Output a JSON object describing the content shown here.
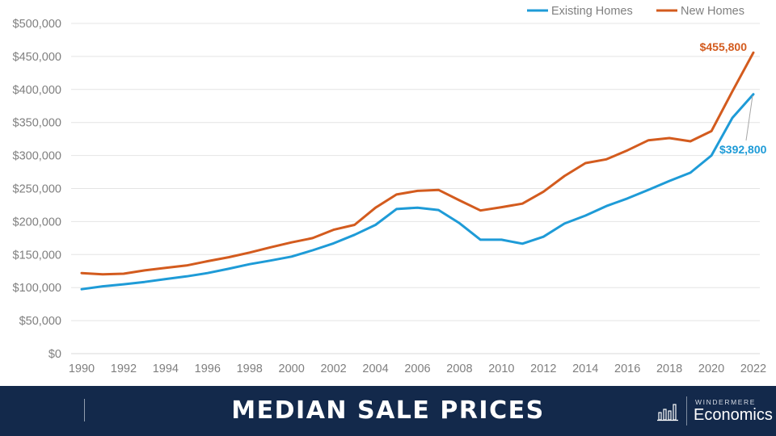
{
  "chart_data": {
    "type": "line",
    "x": [
      1990,
      1991,
      1992,
      1993,
      1994,
      1995,
      1996,
      1997,
      1998,
      1999,
      2000,
      2001,
      2002,
      2003,
      2004,
      2005,
      2006,
      2007,
      2008,
      2009,
      2010,
      2011,
      2012,
      2013,
      2014,
      2015,
      2016,
      2017,
      2018,
      2019,
      2020,
      2021,
      2022
    ],
    "x_tick_labels": [
      "1990",
      "1992",
      "1994",
      "1996",
      "1998",
      "2000",
      "2002",
      "2004",
      "2006",
      "2008",
      "2010",
      "2012",
      "2014",
      "2016",
      "2018",
      "2020",
      "2022"
    ],
    "y_tick_labels": [
      "$0",
      "$50,000",
      "$100,000",
      "$150,000",
      "$200,000",
      "$250,000",
      "$300,000",
      "$350,000",
      "$400,000",
      "$450,000",
      "$500,000"
    ],
    "ylim": [
      0,
      500000
    ],
    "grid": "horizontal",
    "legend_position": "top-right",
    "series": [
      {
        "name": "Existing Homes",
        "color": "#1e9bd7",
        "values": [
          97500,
          102000,
          105000,
          108500,
          113000,
          117000,
          122000,
          128500,
          135500,
          141000,
          147000,
          156500,
          167000,
          180000,
          195000,
          219000,
          221000,
          217500,
          197500,
          172500,
          172500,
          166500,
          177000,
          197000,
          209000,
          223500,
          235000,
          248000,
          261500,
          274000,
          300000,
          357000,
          392800
        ]
      },
      {
        "name": "New Homes",
        "color": "#d35b1e",
        "values": [
          122000,
          120000,
          121000,
          126000,
          130000,
          133500,
          140000,
          146000,
          153000,
          161000,
          168500,
          175000,
          187500,
          195000,
          221000,
          240900,
          246500,
          247900,
          232100,
          216700,
          221800,
          227200,
          245200,
          268900,
          288500,
          294200,
          307800,
          323100,
          326400,
          321500,
          336900,
          397100,
          455800
        ]
      }
    ],
    "annotations": [
      {
        "text": "$455,800",
        "series": "New Homes",
        "color": "#d35b1e"
      },
      {
        "text": "$392,800",
        "series": "Existing Homes",
        "color": "#1e9bd7"
      }
    ]
  },
  "footer": {
    "title": "MEDIAN SALE PRICES",
    "background": "#13294b",
    "brand_top": "WINDERMERE",
    "brand_bottom": "Economics",
    "brand_icon": "bar-chart-icon"
  }
}
